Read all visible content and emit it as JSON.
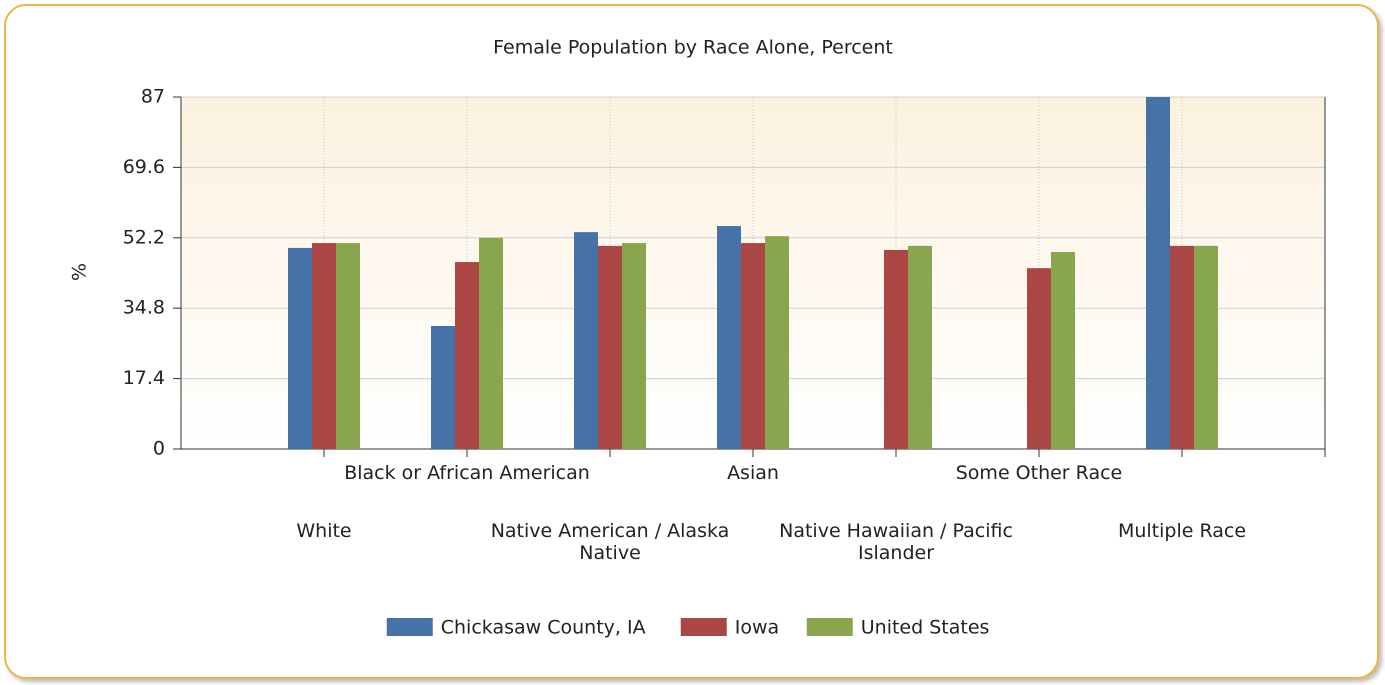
{
  "chart_data": {
    "type": "bar",
    "title": "Female Population by Race Alone, Percent",
    "ylabel": "%",
    "categories": [
      "White",
      "Black or African American",
      "Native American / Alaska Native",
      "Asian",
      "Native Hawaiian / Pacific Islander",
      "Some Other Race",
      "Multiple Race"
    ],
    "series": [
      {
        "name": "Chickasaw County, IA",
        "color": "#4572a7",
        "values": [
          49.7,
          30.4,
          53.6,
          55.1,
          null,
          null,
          87
        ]
      },
      {
        "name": "Iowa",
        "color": "#aa4643",
        "values": [
          50.9,
          46.2,
          50.2,
          50.9,
          49.2,
          44.7,
          50.2
        ]
      },
      {
        "name": "United States",
        "color": "#89a54e",
        "values": [
          50.9,
          52.2,
          50.9,
          52.6,
          50.2,
          48.7,
          50.2
        ]
      }
    ],
    "ylim": [
      0,
      87
    ],
    "yticks": [
      0,
      17.4,
      34.8,
      52.2,
      69.6,
      87
    ],
    "grid": true,
    "legend": "bottom"
  }
}
